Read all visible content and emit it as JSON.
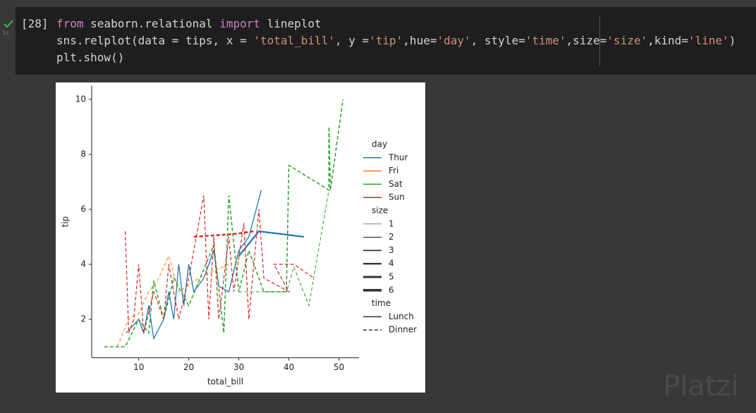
{
  "cell": {
    "status_time": "1s",
    "prompt": "[28]",
    "lines": [
      [
        {
          "text": "from",
          "color": "#c586c0"
        },
        {
          "text": " seaborn.relational ",
          "color": "#d4d4d4"
        },
        {
          "text": "import",
          "color": "#c586c0"
        },
        {
          "text": " lineplot",
          "color": "#d4d4d4"
        }
      ],
      [
        {
          "text": "sns.relplot(data = tips, x = ",
          "color": "#d4d4d4"
        },
        {
          "text": "'total_bill'",
          "color": "#ce9178"
        },
        {
          "text": ", y =",
          "color": "#d4d4d4"
        },
        {
          "text": "'tip'",
          "color": "#ce9178"
        },
        {
          "text": ",hue=",
          "color": "#d4d4d4"
        },
        {
          "text": "'day'",
          "color": "#ce9178"
        },
        {
          "text": ", style=",
          "color": "#d4d4d4"
        },
        {
          "text": "'time'",
          "color": "#ce9178"
        },
        {
          "text": ",size=",
          "color": "#d4d4d4"
        },
        {
          "text": "'size'",
          "color": "#ce9178"
        },
        {
          "text": ",kind=",
          "color": "#d4d4d4"
        },
        {
          "text": "'line'",
          "color": "#ce9178"
        },
        {
          "text": ")",
          "color": "#d4d4d4"
        }
      ],
      [
        {
          "text": "plt.show()",
          "color": "#d4d4d4"
        }
      ]
    ]
  },
  "watermark": "Platzi",
  "chart_data": {
    "type": "line",
    "x_label": "total_bill",
    "y_label": "tip",
    "xlim": [
      0.6,
      54
    ],
    "ylim": [
      0.6,
      10.5
    ],
    "xticks": [
      10,
      20,
      30,
      40,
      50
    ],
    "yticks": [
      2,
      4,
      6,
      8,
      10
    ],
    "series": [
      {
        "color": "#1f77b4",
        "dashed": false,
        "width": 1.3,
        "x": [
          7.5,
          10,
          11,
          12,
          13,
          15,
          16,
          17,
          18,
          19,
          20,
          21,
          23,
          25,
          26,
          28,
          30,
          32,
          34.5
        ],
        "values": [
          1.5,
          2,
          1.5,
          2.5,
          1.3,
          2,
          3,
          2,
          4,
          2.5,
          4,
          3,
          3.5,
          4.5,
          3.2,
          3,
          4.5,
          5,
          6.7
        ]
      },
      {
        "color": "#1f77b4",
        "dashed": false,
        "width": 2.2,
        "x": [
          30,
          34,
          43
        ],
        "values": [
          4.3,
          5.2,
          5
        ]
      },
      {
        "color": "#ff7f0e",
        "dashed": true,
        "width": 1,
        "x": [
          5.7,
          8,
          10,
          12,
          14,
          16,
          18,
          22,
          28
        ],
        "values": [
          1,
          2,
          2.2,
          3,
          3.5,
          4.3,
          3,
          3.5,
          4
        ]
      },
      {
        "color": "#2ca02c",
        "dashed": true,
        "width": 1.5,
        "x": [
          3.1,
          7.3,
          10,
          12,
          13,
          15,
          17,
          20,
          25,
          27,
          28,
          30,
          32,
          35,
          39.5,
          40,
          48,
          48,
          48.3,
          50.8
        ],
        "values": [
          1,
          1,
          2,
          1.5,
          3.4,
          2,
          3.5,
          2.5,
          4.7,
          1.5,
          6.5,
          3,
          4.5,
          3,
          3,
          7.6,
          6.7,
          9,
          6.7,
          10
        ]
      },
      {
        "color": "#2ca02c",
        "dashed": true,
        "width": 1,
        "x": [
          30,
          39.5,
          41,
          44,
          48
        ],
        "values": [
          3,
          3,
          3.9,
          2.5,
          6.7
        ]
      },
      {
        "color": "#d62728",
        "dashed": true,
        "width": 1.2,
        "x": [
          7.3,
          8,
          9,
          10,
          11,
          13,
          15,
          16,
          18,
          20,
          23,
          24,
          25,
          26,
          28,
          29,
          31,
          32,
          34,
          35,
          40,
          37,
          41,
          45
        ],
        "values": [
          5.2,
          1.5,
          2,
          4,
          1.5,
          3,
          2,
          4,
          2,
          3.5,
          6.5,
          2,
          5,
          2,
          5,
          3,
          5.5,
          2,
          6,
          3.5,
          3,
          4,
          4,
          3.5
        ]
      },
      {
        "color": "#d62728",
        "dashed": true,
        "width": 2.5,
        "x": [
          21,
          29,
          33
        ],
        "values": [
          5,
          5.1,
          5.2
        ]
      }
    ],
    "legend": {
      "day": {
        "title": "day",
        "entries": [
          {
            "label": "Thur",
            "color": "#1f77b4"
          },
          {
            "label": "Fri",
            "color": "#ff7f0e"
          },
          {
            "label": "Sat",
            "color": "#2ca02c"
          },
          {
            "label": "Sun",
            "color": "#d62728"
          }
        ]
      },
      "size": {
        "title": "size",
        "entries": [
          {
            "label": "1",
            "width": 0.6
          },
          {
            "label": "2",
            "width": 1.2
          },
          {
            "label": "3",
            "width": 1.8
          },
          {
            "label": "4",
            "width": 2.4
          },
          {
            "label": "5",
            "width": 3
          },
          {
            "label": "6",
            "width": 3.6
          }
        ]
      },
      "time": {
        "title": "time",
        "entries": [
          {
            "label": "Lunch",
            "dashed": false
          },
          {
            "label": "Dinner",
            "dashed": true
          }
        ]
      }
    }
  }
}
